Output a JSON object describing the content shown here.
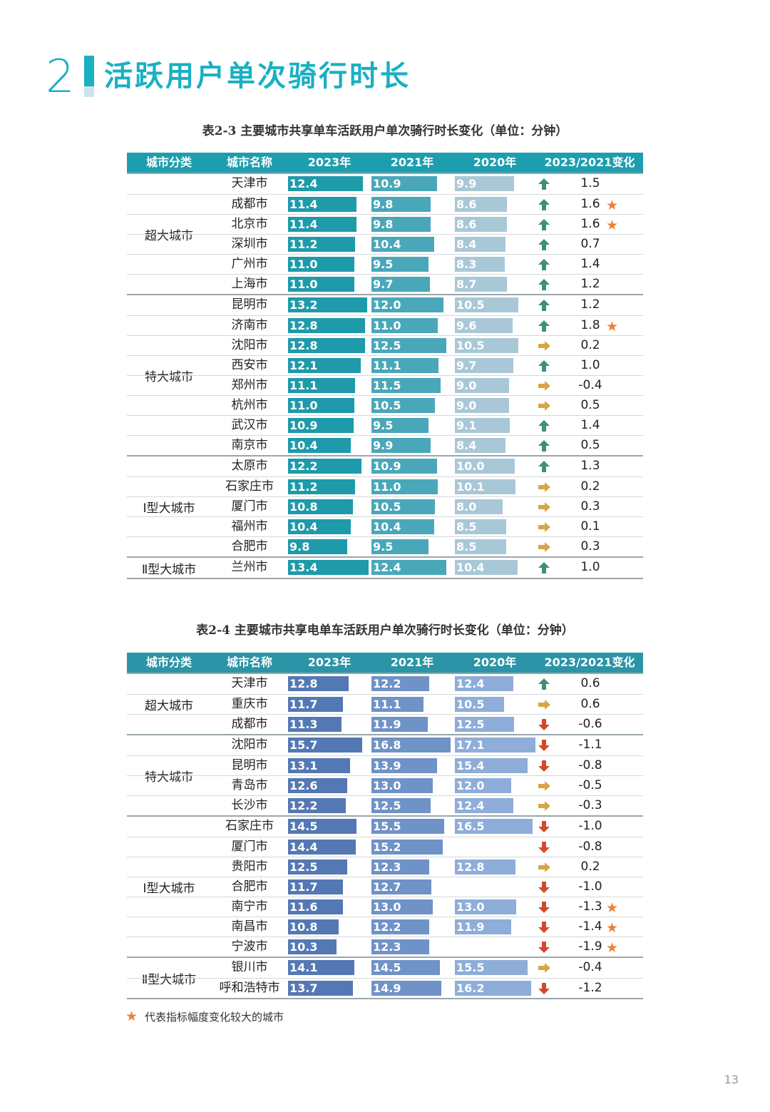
{
  "section": {
    "number": "2",
    "title": "活跃用户单次骑行时长"
  },
  "colors": {
    "accent": "#19b0c2",
    "star": "#e8823a",
    "up": "#3e8f7d",
    "down": "#d24a2a",
    "flat": "#d6a646"
  },
  "table1": {
    "caption": "表2-3 主要城市共享单车活跃用户单次骑行时长变化（单位：分钟）",
    "headers": [
      "城市分类",
      "城市名称",
      "2023年",
      "2021年",
      "2020年",
      "2023/2021变化"
    ],
    "groups": [
      {
        "label": "超大城市",
        "rows": [
          {
            "city": "天津市",
            "v2023": "12.4",
            "v2021": "10.9",
            "v2020": "9.9",
            "trend": "up",
            "change": "1.5",
            "star": false
          },
          {
            "city": "成都市",
            "v2023": "11.4",
            "v2021": "9.8",
            "v2020": "8.6",
            "trend": "up",
            "change": "1.6",
            "star": true
          },
          {
            "city": "北京市",
            "v2023": "11.4",
            "v2021": "9.8",
            "v2020": "8.6",
            "trend": "up",
            "change": "1.6",
            "star": true
          },
          {
            "city": "深圳市",
            "v2023": "11.2",
            "v2021": "10.4",
            "v2020": "8.4",
            "trend": "up",
            "change": "0.7",
            "star": false
          },
          {
            "city": "广州市",
            "v2023": "11.0",
            "v2021": "9.5",
            "v2020": "8.3",
            "trend": "up",
            "change": "1.4",
            "star": false
          },
          {
            "city": "上海市",
            "v2023": "11.0",
            "v2021": "9.7",
            "v2020": "8.7",
            "trend": "up",
            "change": "1.2",
            "star": false
          }
        ]
      },
      {
        "label": "特大城市",
        "rows": [
          {
            "city": "昆明市",
            "v2023": "13.2",
            "v2021": "12.0",
            "v2020": "10.5",
            "trend": "up",
            "change": "1.2",
            "star": false
          },
          {
            "city": "济南市",
            "v2023": "12.8",
            "v2021": "11.0",
            "v2020": "9.6",
            "trend": "up",
            "change": "1.8",
            "star": true
          },
          {
            "city": "沈阳市",
            "v2023": "12.8",
            "v2021": "12.5",
            "v2020": "10.5",
            "trend": "flat",
            "change": "0.2",
            "star": false
          },
          {
            "city": "西安市",
            "v2023": "12.1",
            "v2021": "11.1",
            "v2020": "9.7",
            "trend": "up",
            "change": "1.0",
            "star": false
          },
          {
            "city": "郑州市",
            "v2023": "11.1",
            "v2021": "11.5",
            "v2020": "9.0",
            "trend": "flat",
            "change": "-0.4",
            "star": false
          },
          {
            "city": "杭州市",
            "v2023": "11.0",
            "v2021": "10.5",
            "v2020": "9.0",
            "trend": "flat",
            "change": "0.5",
            "star": false
          },
          {
            "city": "武汉市",
            "v2023": "10.9",
            "v2021": "9.5",
            "v2020": "9.1",
            "trend": "up",
            "change": "1.4",
            "star": false
          },
          {
            "city": "南京市",
            "v2023": "10.4",
            "v2021": "9.9",
            "v2020": "8.4",
            "trend": "up",
            "change": "0.5",
            "star": false
          }
        ]
      },
      {
        "label": "Ⅰ型大城市",
        "rows": [
          {
            "city": "太原市",
            "v2023": "12.2",
            "v2021": "10.9",
            "v2020": "10.0",
            "trend": "up",
            "change": "1.3",
            "star": false
          },
          {
            "city": "石家庄市",
            "v2023": "11.2",
            "v2021": "11.0",
            "v2020": "10.1",
            "trend": "flat",
            "change": "0.2",
            "star": false
          },
          {
            "city": "厦门市",
            "v2023": "10.8",
            "v2021": "10.5",
            "v2020": "8.0",
            "trend": "flat",
            "change": "0.3",
            "star": false
          },
          {
            "city": "福州市",
            "v2023": "10.4",
            "v2021": "10.4",
            "v2020": "8.5",
            "trend": "flat",
            "change": "0.1",
            "star": false
          },
          {
            "city": "合肥市",
            "v2023": "9.8",
            "v2021": "9.5",
            "v2020": "8.5",
            "trend": "flat",
            "change": "0.3",
            "star": false
          }
        ]
      },
      {
        "label": "Ⅱ型大城市",
        "rows": [
          {
            "city": "兰州市",
            "v2023": "13.4",
            "v2021": "12.4",
            "v2020": "10.4",
            "trend": "up",
            "change": "1.0",
            "star": false
          }
        ]
      }
    ]
  },
  "table2": {
    "caption": "表2-4 主要城市共享电单车活跃用户单次骑行时长变化（单位：分钟）",
    "headers": [
      "城市分类",
      "城市名称",
      "2023年",
      "2021年",
      "2020年",
      "2023/2021变化"
    ],
    "groups": [
      {
        "label": "超大城市",
        "rows": [
          {
            "city": "天津市",
            "v2023": "12.8",
            "v2021": "12.2",
            "v2020": "12.4",
            "trend": "up",
            "change": "0.6",
            "star": false
          },
          {
            "city": "重庆市",
            "v2023": "11.7",
            "v2021": "11.1",
            "v2020": "10.5",
            "trend": "flat",
            "change": "0.6",
            "star": false
          },
          {
            "city": "成都市",
            "v2023": "11.3",
            "v2021": "11.9",
            "v2020": "12.5",
            "trend": "down",
            "change": "-0.6",
            "star": false
          }
        ]
      },
      {
        "label": "特大城市",
        "rows": [
          {
            "city": "沈阳市",
            "v2023": "15.7",
            "v2021": "16.8",
            "v2020": "17.1",
            "trend": "down",
            "change": "-1.1",
            "star": false
          },
          {
            "city": "昆明市",
            "v2023": "13.1",
            "v2021": "13.9",
            "v2020": "15.4",
            "trend": "down",
            "change": "-0.8",
            "star": false
          },
          {
            "city": "青岛市",
            "v2023": "12.6",
            "v2021": "13.0",
            "v2020": "12.0",
            "trend": "flat",
            "change": "-0.5",
            "star": false
          },
          {
            "city": "长沙市",
            "v2023": "12.2",
            "v2021": "12.5",
            "v2020": "12.4",
            "trend": "flat",
            "change": "-0.3",
            "star": false
          }
        ]
      },
      {
        "label": "Ⅰ型大城市",
        "rows": [
          {
            "city": "石家庄市",
            "v2023": "14.5",
            "v2021": "15.5",
            "v2020": "16.5",
            "trend": "down",
            "change": "-1.0",
            "star": false
          },
          {
            "city": "厦门市",
            "v2023": "14.4",
            "v2021": "15.2",
            "v2020": "",
            "trend": "down",
            "change": "-0.8",
            "star": false
          },
          {
            "city": "贵阳市",
            "v2023": "12.5",
            "v2021": "12.3",
            "v2020": "12.8",
            "trend": "flat",
            "change": "0.2",
            "star": false
          },
          {
            "city": "合肥市",
            "v2023": "11.7",
            "v2021": "12.7",
            "v2020": "",
            "trend": "down",
            "change": "-1.0",
            "star": false
          },
          {
            "city": "南宁市",
            "v2023": "11.6",
            "v2021": "13.0",
            "v2020": "13.0",
            "trend": "down",
            "change": "-1.3",
            "star": true
          },
          {
            "city": "南昌市",
            "v2023": "10.8",
            "v2021": "12.2",
            "v2020": "11.9",
            "trend": "down",
            "change": "-1.4",
            "star": true
          },
          {
            "city": "宁波市",
            "v2023": "10.3",
            "v2021": "12.3",
            "v2020": "",
            "trend": "down",
            "change": "-1.9",
            "star": true
          }
        ]
      },
      {
        "label": "Ⅱ型大城市",
        "rows": [
          {
            "city": "银川市",
            "v2023": "14.1",
            "v2021": "14.5",
            "v2020": "15.5",
            "trend": "flat",
            "change": "-0.4",
            "star": false
          },
          {
            "city": "呼和浩特市",
            "v2023": "13.7",
            "v2021": "14.9",
            "v2020": "16.2",
            "trend": "down",
            "change": "-1.2",
            "star": false
          }
        ]
      }
    ]
  },
  "legend": {
    "symbol": "★",
    "text": "代表指标幅度变化较大的城市"
  },
  "page_number": "13"
}
